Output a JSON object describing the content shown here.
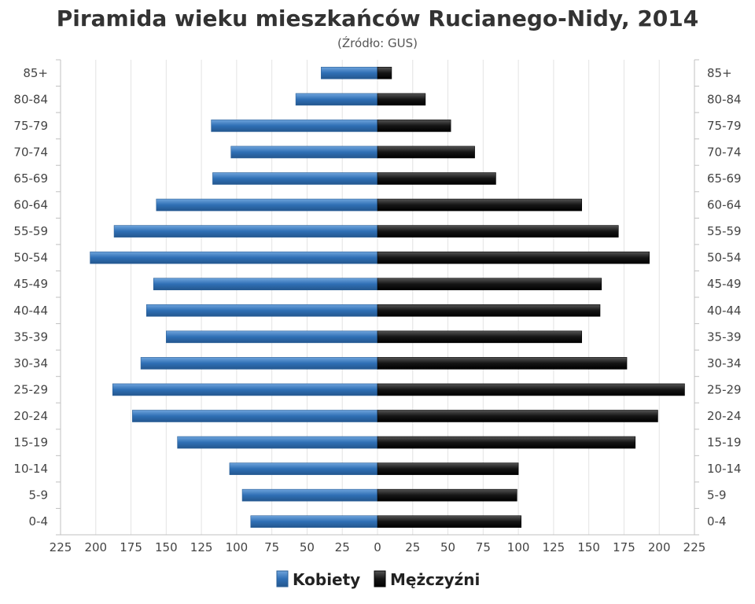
{
  "chart_data": {
    "type": "bar",
    "title": "Piramida wieku mieszkańców Rucianego-Nidy, 2014",
    "subtitle": "(Źródło: GUS)",
    "categories": [
      "85+",
      "80-84",
      "75-79",
      "70-74",
      "65-69",
      "60-64",
      "55-59",
      "50-54",
      "45-49",
      "40-44",
      "35-39",
      "30-34",
      "25-29",
      "20-24",
      "15-19",
      "10-14",
      "5-9",
      "0-4"
    ],
    "series": [
      {
        "name": "Kobiety",
        "side": "left",
        "color": "#3d7cc0",
        "values": [
          40,
          58,
          118,
          104,
          117,
          157,
          187,
          204,
          159,
          164,
          150,
          168,
          188,
          174,
          142,
          105,
          96,
          90
        ]
      },
      {
        "name": "Mężczyźni",
        "side": "right",
        "color": "#1a1a1a",
        "values": [
          10,
          34,
          52,
          69,
          84,
          145,
          171,
          193,
          159,
          158,
          145,
          177,
          218,
          199,
          183,
          100,
          99,
          102
        ]
      }
    ],
    "x_ticks": [
      "225",
      "200",
      "175",
      "150",
      "125",
      "100",
      "75",
      "50",
      "25",
      "0",
      "25",
      "50",
      "75",
      "100",
      "125",
      "150",
      "175",
      "200",
      "225"
    ],
    "xlim": [
      -225,
      225
    ],
    "grid": true,
    "legend": "bottom-center"
  }
}
